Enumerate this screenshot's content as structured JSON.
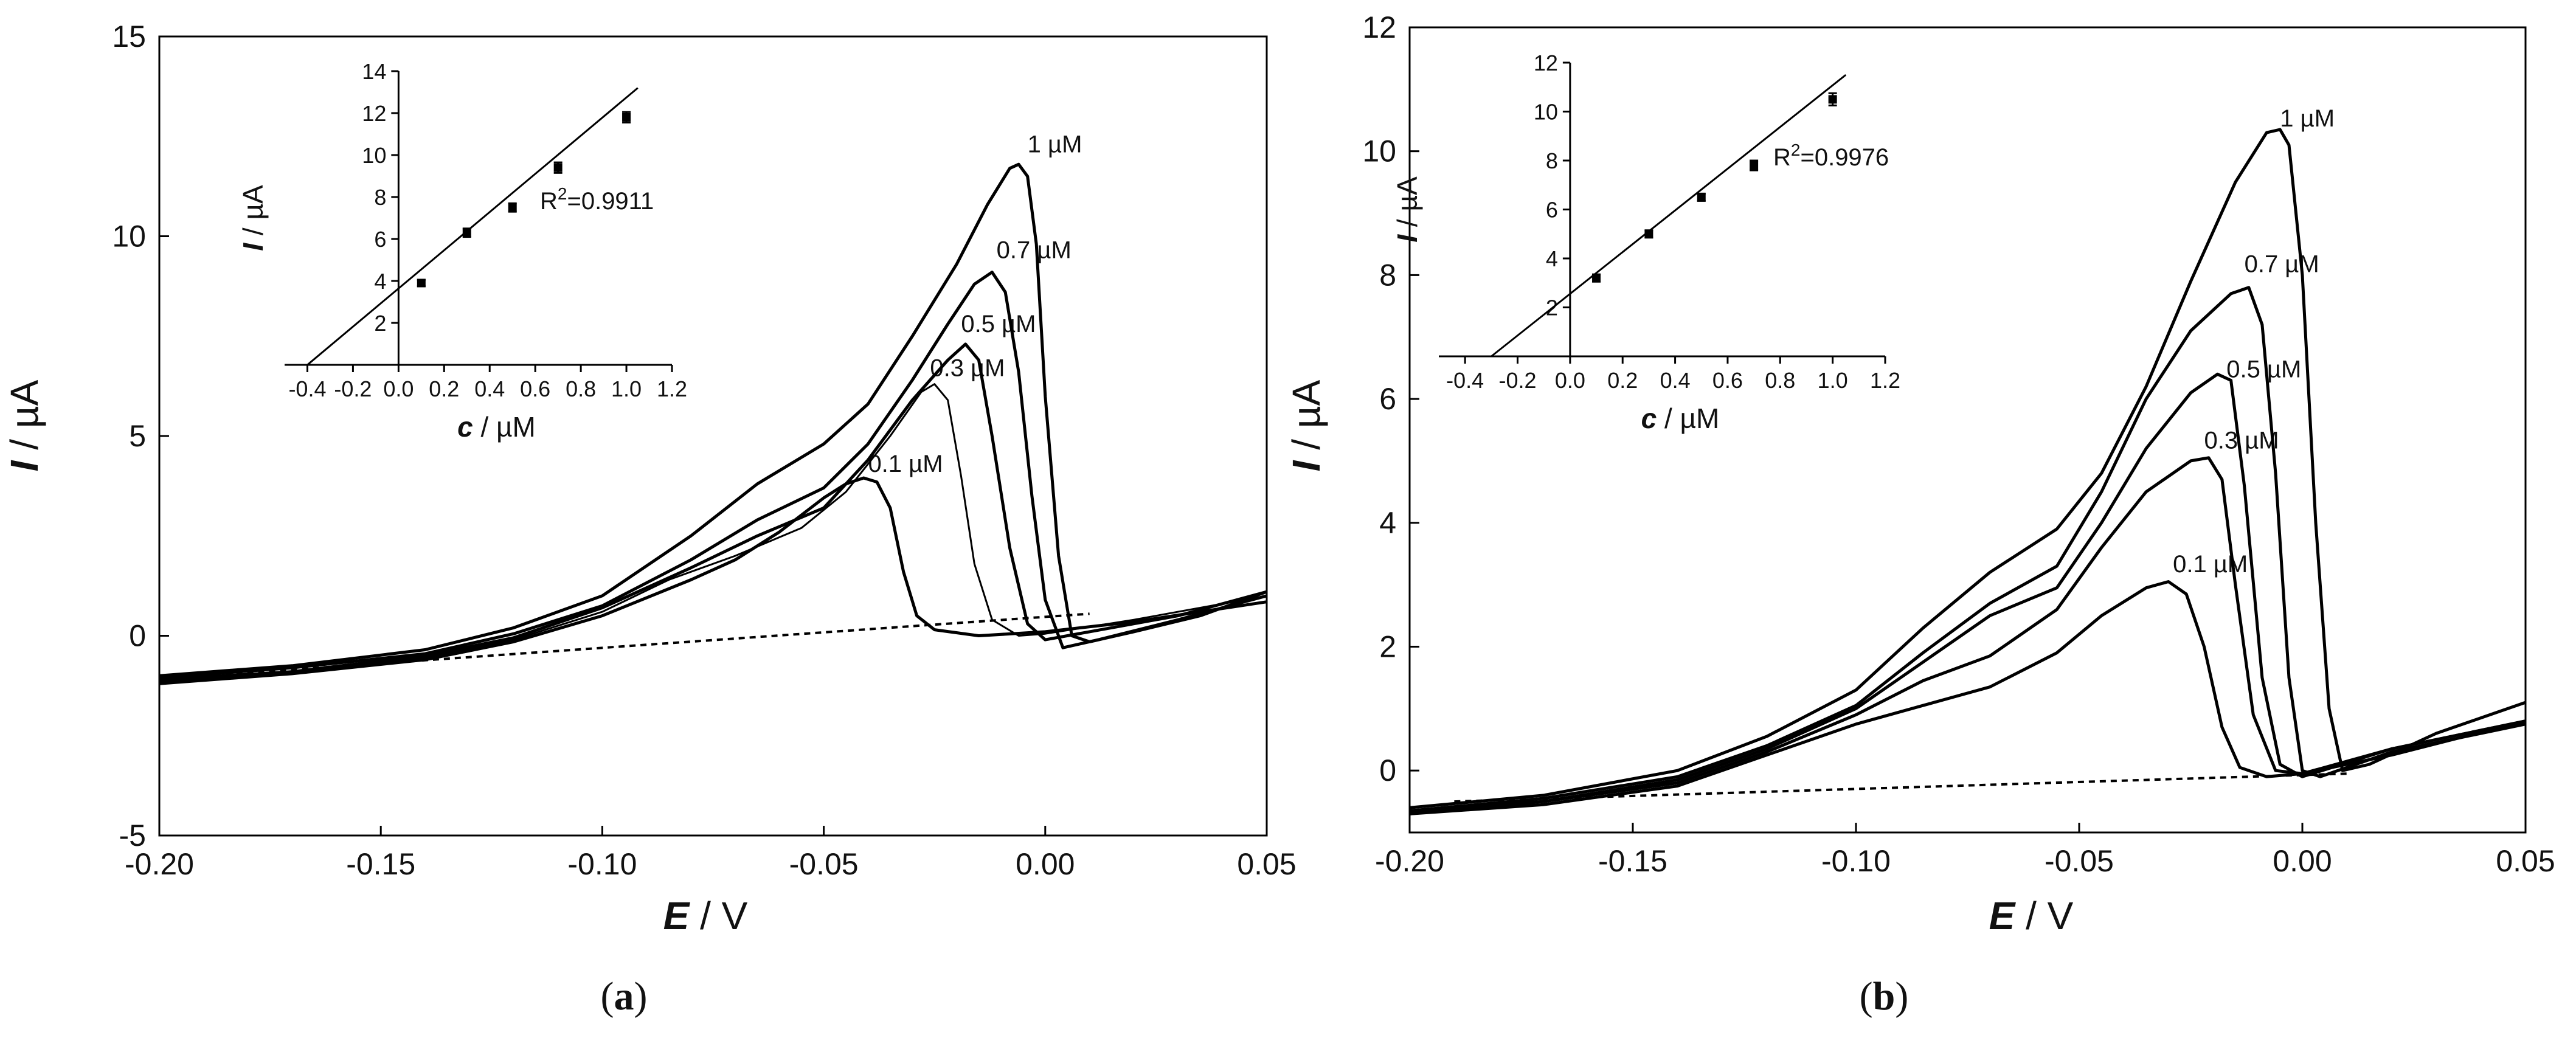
{
  "chart_data": [
    {
      "type": "line",
      "panel_label": "a",
      "xlabel": "E",
      "xunit": "V",
      "ylabel": "I",
      "yunit": "µA",
      "xlim": [
        -0.2,
        0.05
      ],
      "ylim": [
        -5,
        15
      ],
      "xticks": [
        "-0.20",
        "-0.15",
        "-0.10",
        "-0.05",
        "0.00",
        "0.05"
      ],
      "yticks": [
        "-5",
        "0",
        "5",
        "10",
        "15"
      ],
      "series": [
        {
          "name": "0.1 µM",
          "label": "0.1 µM",
          "label_pos": [
            -0.04,
            4.1
          ],
          "points": [
            [
              -0.2,
              -1.2
            ],
            [
              -0.17,
              -0.95
            ],
            [
              -0.14,
              -0.6
            ],
            [
              -0.12,
              -0.15
            ],
            [
              -0.1,
              0.5
            ],
            [
              -0.08,
              1.4
            ],
            [
              -0.07,
              1.9
            ],
            [
              -0.06,
              2.6
            ],
            [
              -0.05,
              3.45
            ],
            [
              -0.045,
              3.8
            ],
            [
              -0.041,
              3.95
            ],
            [
              -0.038,
              3.85
            ],
            [
              -0.035,
              3.2
            ],
            [
              -0.032,
              1.6
            ],
            [
              -0.029,
              0.5
            ],
            [
              -0.025,
              0.15
            ],
            [
              -0.015,
              0.0
            ],
            [
              0.0,
              0.1
            ],
            [
              0.02,
              0.35
            ],
            [
              0.05,
              0.85
            ]
          ]
        },
        {
          "name": "0.3 µM",
          "label": "0.3 µM",
          "label_pos": [
            -0.026,
            6.5
          ],
          "points": [
            [
              -0.2,
              -1.15
            ],
            [
              -0.17,
              -0.9
            ],
            [
              -0.14,
              -0.55
            ],
            [
              -0.12,
              -0.1
            ],
            [
              -0.1,
              0.6
            ],
            [
              -0.085,
              1.4
            ],
            [
              -0.07,
              2.0
            ],
            [
              -0.055,
              2.7
            ],
            [
              -0.045,
              3.6
            ],
            [
              -0.035,
              5.0
            ],
            [
              -0.028,
              6.1
            ],
            [
              -0.025,
              6.3
            ],
            [
              -0.022,
              5.9
            ],
            [
              -0.019,
              4.0
            ],
            [
              -0.016,
              1.8
            ],
            [
              -0.012,
              0.4
            ],
            [
              -0.006,
              0.0
            ],
            [
              0.0,
              0.05
            ],
            [
              0.02,
              0.4
            ],
            [
              0.05,
              1.0
            ]
          ]
        },
        {
          "name": "0.5 µM",
          "label": "0.5 µM",
          "label_pos": [
            -0.019,
            7.6
          ],
          "points": [
            [
              -0.2,
              -1.1
            ],
            [
              -0.17,
              -0.9
            ],
            [
              -0.14,
              -0.5
            ],
            [
              -0.12,
              -0.05
            ],
            [
              -0.1,
              0.7
            ],
            [
              -0.08,
              1.7
            ],
            [
              -0.065,
              2.5
            ],
            [
              -0.05,
              3.2
            ],
            [
              -0.04,
              4.4
            ],
            [
              -0.03,
              5.9
            ],
            [
              -0.022,
              6.9
            ],
            [
              -0.018,
              7.3
            ],
            [
              -0.015,
              6.9
            ],
            [
              -0.012,
              5.0
            ],
            [
              -0.008,
              2.2
            ],
            [
              -0.004,
              0.3
            ],
            [
              0.0,
              -0.1
            ],
            [
              0.01,
              0.1
            ],
            [
              0.03,
              0.5
            ],
            [
              0.05,
              1.1
            ]
          ]
        },
        {
          "name": "0.7 µM",
          "label": "0.7 µM",
          "label_pos": [
            -0.011,
            9.45
          ],
          "points": [
            [
              -0.2,
              -1.05
            ],
            [
              -0.17,
              -0.8
            ],
            [
              -0.14,
              -0.45
            ],
            [
              -0.12,
              0.05
            ],
            [
              -0.1,
              0.75
            ],
            [
              -0.08,
              1.9
            ],
            [
              -0.065,
              2.9
            ],
            [
              -0.05,
              3.7
            ],
            [
              -0.04,
              4.8
            ],
            [
              -0.03,
              6.4
            ],
            [
              -0.022,
              7.8
            ],
            [
              -0.016,
              8.8
            ],
            [
              -0.012,
              9.1
            ],
            [
              -0.009,
              8.6
            ],
            [
              -0.006,
              6.6
            ],
            [
              -0.003,
              3.5
            ],
            [
              0.0,
              0.9
            ],
            [
              0.004,
              -0.3
            ],
            [
              0.012,
              -0.1
            ],
            [
              0.03,
              0.4
            ],
            [
              0.05,
              1.0
            ]
          ]
        },
        {
          "name": "1 µM",
          "label": "1 µM",
          "label_pos": [
            -0.004,
            12.1
          ],
          "points": [
            [
              -0.2,
              -1.0
            ],
            [
              -0.17,
              -0.75
            ],
            [
              -0.14,
              -0.35
            ],
            [
              -0.12,
              0.2
            ],
            [
              -0.1,
              1.0
            ],
            [
              -0.08,
              2.5
            ],
            [
              -0.065,
              3.8
            ],
            [
              -0.05,
              4.8
            ],
            [
              -0.04,
              5.8
            ],
            [
              -0.03,
              7.5
            ],
            [
              -0.02,
              9.3
            ],
            [
              -0.013,
              10.8
            ],
            [
              -0.008,
              11.7
            ],
            [
              -0.006,
              11.8
            ],
            [
              -0.004,
              11.5
            ],
            [
              -0.002,
              9.8
            ],
            [
              0.0,
              6.0
            ],
            [
              0.003,
              2.0
            ],
            [
              0.006,
              0.0
            ],
            [
              0.01,
              -0.15
            ],
            [
              0.02,
              0.1
            ],
            [
              0.035,
              0.5
            ],
            [
              0.05,
              1.1
            ]
          ]
        }
      ],
      "baseline": {
        "style": "dashed",
        "points": [
          [
            -0.19,
            -1.0
          ],
          [
            0.01,
            0.55
          ]
        ]
      },
      "inset": {
        "type": "scatter",
        "xlabel": "c",
        "xunit": "µM",
        "ylabel": "I",
        "yunit": "µA",
        "xlim": [
          -0.5,
          1.2
        ],
        "ylim": [
          0,
          14
        ],
        "xticks": [
          "-0.4",
          "-0.2",
          "0.0",
          "0.2",
          "0.4",
          "0.6",
          "0.8",
          "1.0",
          "1.2"
        ],
        "yticks": [
          "2",
          "4",
          "6",
          "8",
          "10",
          "12",
          "14"
        ],
        "x": [
          0.1,
          0.3,
          0.5,
          0.7,
          1.0
        ],
        "y": [
          3.9,
          6.3,
          7.5,
          9.4,
          11.8
        ],
        "error": [
          0.15,
          0.2,
          0.2,
          0.25,
          0.25
        ],
        "fit": [
          [
            -0.4,
            0.0
          ],
          [
            1.05,
            13.2
          ]
        ],
        "r2_label": "=0.9911",
        "r2_prefix": "R"
      }
    },
    {
      "type": "line",
      "panel_label": "b",
      "xlabel": "E",
      "xunit": "V",
      "ylabel": "I",
      "yunit": "µA",
      "xlim": [
        -0.2,
        0.05
      ],
      "ylim": [
        -1,
        12
      ],
      "xticks": [
        "-0.20",
        "-0.15",
        "-0.10",
        "-0.05",
        "0.00",
        "0.05"
      ],
      "yticks": [
        "0",
        "2",
        "4",
        "6",
        "8",
        "10",
        "12"
      ],
      "series": [
        {
          "name": "0.1 µM",
          "label": "0.1 µM",
          "label_pos": [
            -0.029,
            3.2
          ],
          "points": [
            [
              -0.2,
              -0.7
            ],
            [
              -0.17,
              -0.55
            ],
            [
              -0.14,
              -0.25
            ],
            [
              -0.12,
              0.25
            ],
            [
              -0.1,
              0.75
            ],
            [
              -0.085,
              1.05
            ],
            [
              -0.07,
              1.35
            ],
            [
              -0.055,
              1.9
            ],
            [
              -0.045,
              2.5
            ],
            [
              -0.035,
              2.95
            ],
            [
              -0.03,
              3.05
            ],
            [
              -0.026,
              2.85
            ],
            [
              -0.022,
              2.0
            ],
            [
              -0.018,
              0.7
            ],
            [
              -0.014,
              0.05
            ],
            [
              -0.008,
              -0.1
            ],
            [
              0.0,
              -0.05
            ],
            [
              0.02,
              0.25
            ],
            [
              0.05,
              0.8
            ]
          ]
        },
        {
          "name": "0.3 µM",
          "label": "0.3 µM",
          "label_pos": [
            -0.022,
            5.2
          ],
          "points": [
            [
              -0.2,
              -0.7
            ],
            [
              -0.17,
              -0.5
            ],
            [
              -0.14,
              -0.2
            ],
            [
              -0.12,
              0.3
            ],
            [
              -0.1,
              0.9
            ],
            [
              -0.085,
              1.45
            ],
            [
              -0.07,
              1.85
            ],
            [
              -0.055,
              2.6
            ],
            [
              -0.045,
              3.6
            ],
            [
              -0.035,
              4.5
            ],
            [
              -0.025,
              5.0
            ],
            [
              -0.021,
              5.05
            ],
            [
              -0.018,
              4.7
            ],
            [
              -0.015,
              3.0
            ],
            [
              -0.011,
              0.9
            ],
            [
              -0.006,
              0.0
            ],
            [
              0.0,
              -0.05
            ],
            [
              0.02,
              0.35
            ],
            [
              0.05,
              0.8
            ]
          ]
        },
        {
          "name": "0.5 µM",
          "label": "0.5 µM",
          "label_pos": [
            -0.017,
            6.35
          ],
          "points": [
            [
              -0.2,
              -0.65
            ],
            [
              -0.17,
              -0.5
            ],
            [
              -0.14,
              -0.15
            ],
            [
              -0.12,
              0.35
            ],
            [
              -0.1,
              1.0
            ],
            [
              -0.085,
              1.75
            ],
            [
              -0.07,
              2.5
            ],
            [
              -0.055,
              2.95
            ],
            [
              -0.045,
              4.0
            ],
            [
              -0.035,
              5.2
            ],
            [
              -0.025,
              6.1
            ],
            [
              -0.019,
              6.4
            ],
            [
              -0.016,
              6.3
            ],
            [
              -0.013,
              4.6
            ],
            [
              -0.009,
              1.5
            ],
            [
              -0.005,
              0.1
            ],
            [
              0.0,
              -0.1
            ],
            [
              0.02,
              0.35
            ],
            [
              0.05,
              0.8
            ]
          ]
        },
        {
          "name": "0.7 µM",
          "label": "0.7 µM",
          "label_pos": [
            -0.013,
            8.05
          ],
          "points": [
            [
              -0.2,
              -0.65
            ],
            [
              -0.17,
              -0.45
            ],
            [
              -0.14,
              -0.1
            ],
            [
              -0.12,
              0.4
            ],
            [
              -0.1,
              1.05
            ],
            [
              -0.085,
              1.9
            ],
            [
              -0.07,
              2.7
            ],
            [
              -0.055,
              3.3
            ],
            [
              -0.045,
              4.5
            ],
            [
              -0.035,
              6.0
            ],
            [
              -0.025,
              7.1
            ],
            [
              -0.016,
              7.7
            ],
            [
              -0.012,
              7.8
            ],
            [
              -0.009,
              7.2
            ],
            [
              -0.006,
              4.8
            ],
            [
              -0.003,
              1.5
            ],
            [
              0.0,
              0.0
            ],
            [
              0.004,
              -0.1
            ],
            [
              0.02,
              0.3
            ],
            [
              0.05,
              0.75
            ]
          ]
        },
        {
          "name": "1 µM",
          "label": "1 µM",
          "label_pos": [
            -0.005,
            10.4
          ],
          "points": [
            [
              -0.2,
              -0.6
            ],
            [
              -0.17,
              -0.4
            ],
            [
              -0.14,
              0.0
            ],
            [
              -0.12,
              0.55
            ],
            [
              -0.1,
              1.3
            ],
            [
              -0.085,
              2.3
            ],
            [
              -0.07,
              3.2
            ],
            [
              -0.055,
              3.9
            ],
            [
              -0.045,
              4.8
            ],
            [
              -0.035,
              6.2
            ],
            [
              -0.025,
              7.9
            ],
            [
              -0.015,
              9.5
            ],
            [
              -0.008,
              10.3
            ],
            [
              -0.005,
              10.35
            ],
            [
              -0.003,
              10.1
            ],
            [
              0.0,
              8.0
            ],
            [
              0.003,
              4.0
            ],
            [
              0.006,
              1.0
            ],
            [
              0.009,
              0.0
            ],
            [
              0.015,
              0.1
            ],
            [
              0.03,
              0.6
            ],
            [
              0.05,
              1.1
            ]
          ]
        }
      ],
      "baseline": {
        "style": "dashed",
        "points": [
          [
            -0.19,
            -0.5
          ],
          [
            0.01,
            -0.05
          ]
        ]
      },
      "inset": {
        "type": "scatter",
        "xlabel": "c",
        "xunit": "µM",
        "ylabel": "I",
        "yunit": "µA",
        "xlim": [
          -0.5,
          1.2
        ],
        "ylim": [
          0,
          12
        ],
        "xticks": [
          "-0.4",
          "-0.2",
          "0.0",
          "0.2",
          "0.4",
          "0.6",
          "0.8",
          "1.0",
          "1.2"
        ],
        "yticks": [
          "2",
          "4",
          "6",
          "8",
          "10",
          "12"
        ],
        "x": [
          0.1,
          0.3,
          0.5,
          0.7,
          1.0
        ],
        "y": [
          3.2,
          5.0,
          6.5,
          7.8,
          10.5
        ],
        "error": [
          0.15,
          0.15,
          0.15,
          0.2,
          0.25
        ],
        "fit": [
          [
            -0.3,
            0.0
          ],
          [
            1.05,
            11.5
          ]
        ],
        "r2_label": "=0.9976",
        "r2_prefix": "R"
      }
    }
  ]
}
